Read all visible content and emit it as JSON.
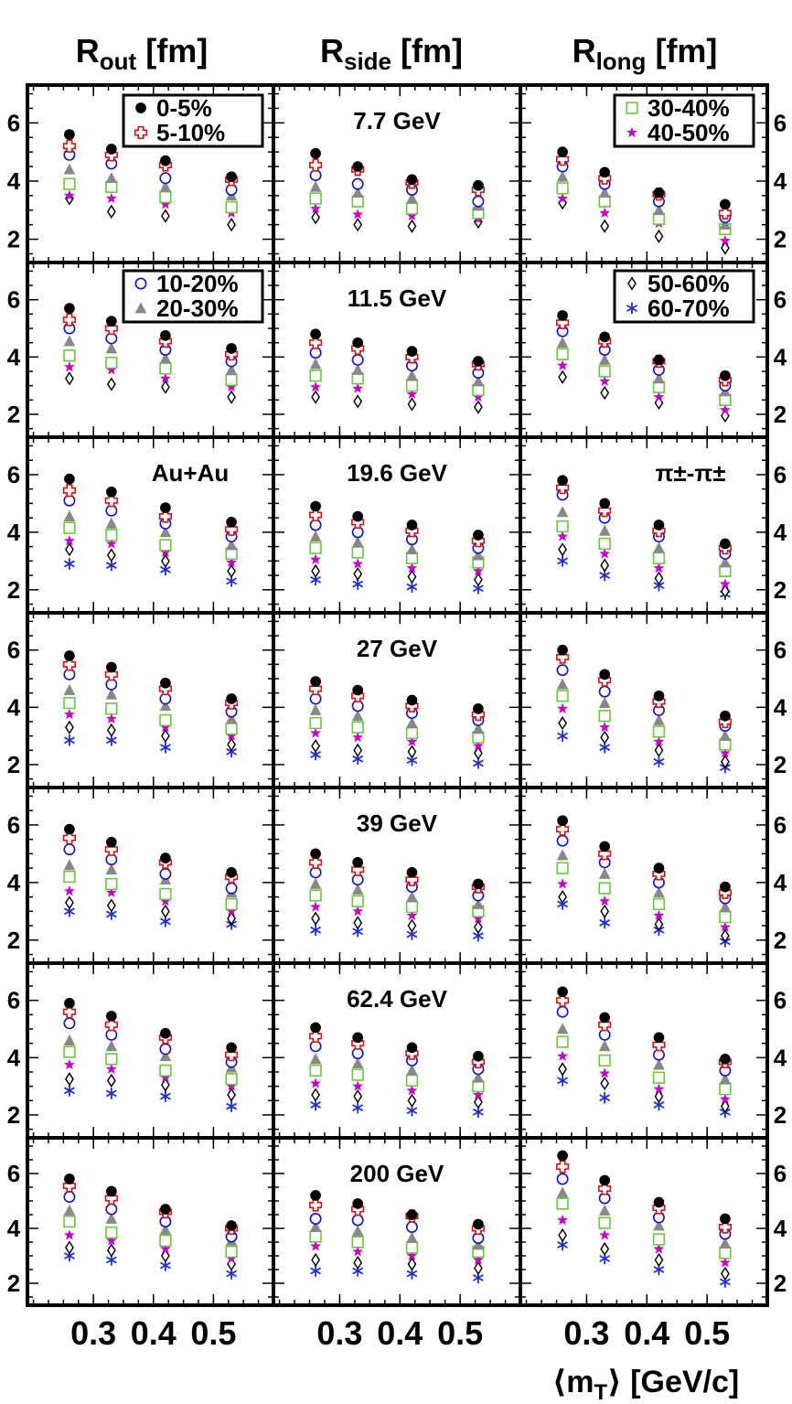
{
  "chart_data": {
    "type": "scatter",
    "column_titles": [
      {
        "main": "R",
        "sub": "out",
        "unit": " [fm]"
      },
      {
        "main": "R",
        "sub": "side",
        "unit": " [fm]"
      },
      {
        "main": "R",
        "sub": "long",
        "unit": " [fm]"
      }
    ],
    "xlabel_pre": "⟨m",
    "xlabel_sub": "T",
    "xlabel_post": "⟩ [GeV/c]",
    "x_ticks": [
      "0.3",
      "0.4",
      "0.5"
    ],
    "x_tick_values": [
      0.3,
      0.4,
      0.5
    ],
    "y_ticks": [
      "2",
      "4",
      "6"
    ],
    "y_tick_values": [
      2,
      4,
      6
    ],
    "xlim": [
      0.19,
      0.6
    ],
    "ylim": [
      1.2,
      7.3
    ],
    "x": [
      0.26,
      0.33,
      0.42,
      0.53
    ],
    "energies": [
      "7.7 GeV",
      "11.5 GeV",
      "19.6 GeV",
      "27 GeV",
      "39 GeV",
      "62.4 GeV",
      "200 GeV"
    ],
    "system_label": "Au+Au",
    "pair_label": "π±-π±",
    "series": [
      {
        "name": "0-5%",
        "marker": "filled-circle",
        "color": "#000000"
      },
      {
        "name": "5-10%",
        "marker": "open-cross",
        "color": "#e01010"
      },
      {
        "name": "10-20%",
        "marker": "open-circle",
        "color": "#1010e0"
      },
      {
        "name": "20-30%",
        "marker": "filled-triangle",
        "color": "#888888"
      },
      {
        "name": "30-40%",
        "marker": "open-square",
        "color": "#66cc33"
      },
      {
        "name": "40-50%",
        "marker": "star",
        "color": "#cc00cc"
      },
      {
        "name": "50-60%",
        "marker": "open-diamond",
        "color": "#000000"
      },
      {
        "name": "60-70%",
        "marker": "asterisk",
        "color": "#1a2ee0"
      }
    ],
    "legends": [
      {
        "row": 0,
        "col": 0,
        "items": [
          0,
          1
        ]
      },
      {
        "row": 0,
        "col": 2,
        "items": [
          4,
          5
        ]
      },
      {
        "row": 1,
        "col": 0,
        "items": [
          2,
          3
        ]
      },
      {
        "row": 1,
        "col": 2,
        "items": [
          6,
          7
        ]
      }
    ],
    "values": {
      "Rout": [
        [
          [
            5.6,
            5.1,
            4.7,
            4.15
          ],
          [
            5.2,
            4.9,
            4.55,
            4.05
          ],
          [
            4.9,
            4.6,
            4.1,
            3.7
          ],
          [
            4.4,
            4.1,
            3.8,
            3.5
          ],
          [
            3.9,
            3.8,
            3.45,
            3.1
          ],
          [
            3.5,
            3.4,
            3.2,
            2.9
          ],
          [
            3.4,
            2.95,
            2.8,
            2.5
          ],
          null
        ],
        [
          [
            5.7,
            5.25,
            4.75,
            4.3
          ],
          [
            5.3,
            5.0,
            4.55,
            4.1
          ],
          [
            5.0,
            4.65,
            4.25,
            3.85
          ],
          [
            4.55,
            4.3,
            3.95,
            3.55
          ],
          [
            4.05,
            3.8,
            3.6,
            3.2
          ],
          [
            3.65,
            3.55,
            3.25,
            2.95
          ],
          [
            3.25,
            3.05,
            2.95,
            2.6
          ],
          null
        ],
        [
          [
            5.85,
            5.4,
            4.85,
            4.35
          ],
          [
            5.45,
            5.1,
            4.55,
            4.1
          ],
          [
            5.1,
            4.75,
            4.3,
            3.85
          ],
          [
            4.55,
            4.3,
            4.0,
            3.55
          ],
          [
            4.15,
            3.9,
            3.55,
            3.25
          ],
          [
            3.7,
            3.6,
            3.3,
            2.95
          ],
          [
            3.4,
            3.2,
            3.0,
            2.65
          ],
          [
            2.9,
            2.85,
            2.7,
            2.3
          ]
        ],
        [
          [
            5.8,
            5.4,
            4.85,
            4.3
          ],
          [
            5.5,
            5.15,
            4.65,
            4.15
          ],
          [
            5.15,
            4.8,
            4.3,
            3.85
          ],
          [
            4.6,
            4.45,
            4.05,
            3.6
          ],
          [
            4.15,
            3.95,
            3.55,
            3.25
          ],
          [
            3.75,
            3.6,
            3.3,
            3.0
          ],
          [
            3.3,
            3.2,
            3.0,
            2.7
          ],
          [
            2.85,
            2.85,
            2.6,
            2.45
          ]
        ],
        [
          [
            5.85,
            5.4,
            4.85,
            4.35
          ],
          [
            5.55,
            5.15,
            4.7,
            4.2
          ],
          [
            5.15,
            4.8,
            4.3,
            3.8
          ],
          [
            4.6,
            4.45,
            4.1,
            3.65
          ],
          [
            4.2,
            3.95,
            3.6,
            3.25
          ],
          [
            3.7,
            3.65,
            3.35,
            3.0
          ],
          [
            3.3,
            3.2,
            3.0,
            2.75
          ],
          [
            3.0,
            2.9,
            2.65,
            2.55
          ]
        ],
        [
          [
            5.9,
            5.45,
            4.85,
            4.35
          ],
          [
            5.6,
            5.15,
            4.7,
            4.1
          ],
          [
            5.2,
            4.8,
            4.3,
            3.85
          ],
          [
            4.6,
            4.4,
            4.05,
            3.65
          ],
          [
            4.2,
            3.95,
            3.55,
            3.25
          ],
          [
            3.75,
            3.6,
            3.3,
            3.0
          ],
          [
            3.25,
            3.2,
            3.05,
            2.7
          ],
          [
            2.85,
            2.75,
            2.65,
            2.3
          ]
        ],
        [
          [
            5.8,
            5.35,
            4.7,
            4.1
          ],
          [
            5.55,
            5.1,
            4.6,
            4.0
          ],
          [
            5.15,
            4.7,
            4.25,
            3.7
          ],
          [
            4.65,
            4.35,
            3.95,
            3.55
          ],
          [
            4.25,
            3.85,
            3.55,
            3.15
          ],
          [
            3.75,
            3.55,
            3.25,
            2.9
          ],
          [
            3.3,
            3.2,
            3.0,
            2.7
          ],
          [
            3.0,
            2.85,
            2.65,
            2.35
          ]
        ]
      ],
      "Rside": [
        [
          [
            4.95,
            4.5,
            4.05,
            3.85
          ],
          [
            4.55,
            4.4,
            3.95,
            3.7
          ],
          [
            4.2,
            3.9,
            3.7,
            3.3
          ],
          [
            3.8,
            3.6,
            3.4,
            3.15
          ],
          [
            3.4,
            3.3,
            3.05,
            2.9
          ],
          [
            3.05,
            2.85,
            2.8,
            2.7
          ],
          [
            2.75,
            2.5,
            2.45,
            2.6
          ],
          null
        ],
        [
          [
            4.8,
            4.5,
            4.2,
            3.85
          ],
          [
            4.5,
            4.3,
            4.0,
            3.75
          ],
          [
            4.15,
            3.9,
            3.7,
            3.45
          ],
          [
            3.75,
            3.55,
            3.35,
            3.15
          ],
          [
            3.35,
            3.25,
            3.0,
            2.85
          ],
          [
            2.95,
            2.9,
            2.7,
            2.6
          ],
          [
            2.6,
            2.45,
            2.35,
            2.25
          ],
          null
        ],
        [
          [
            4.9,
            4.55,
            4.25,
            3.9
          ],
          [
            4.6,
            4.35,
            4.05,
            3.7
          ],
          [
            4.25,
            4.0,
            3.75,
            3.45
          ],
          [
            3.85,
            3.65,
            3.4,
            3.2
          ],
          [
            3.45,
            3.3,
            3.1,
            2.95
          ],
          [
            3.05,
            2.9,
            2.75,
            2.65
          ],
          [
            2.65,
            2.55,
            2.45,
            2.35
          ],
          [
            2.35,
            2.2,
            2.1,
            2.05
          ]
        ],
        [
          [
            4.9,
            4.6,
            4.25,
            3.95
          ],
          [
            4.65,
            4.4,
            4.05,
            3.75
          ],
          [
            4.3,
            4.05,
            3.8,
            3.55
          ],
          [
            3.9,
            3.7,
            3.45,
            3.25
          ],
          [
            3.45,
            3.3,
            3.1,
            2.95
          ],
          [
            3.1,
            2.95,
            2.8,
            2.65
          ],
          [
            2.65,
            2.5,
            2.45,
            2.4
          ],
          [
            2.35,
            2.2,
            2.15,
            2.05
          ]
        ],
        [
          [
            5.0,
            4.7,
            4.35,
            3.95
          ],
          [
            4.7,
            4.45,
            4.1,
            3.85
          ],
          [
            4.35,
            4.1,
            3.85,
            3.55
          ],
          [
            3.95,
            3.75,
            3.5,
            3.25
          ],
          [
            3.55,
            3.35,
            3.15,
            3.0
          ],
          [
            3.15,
            3.0,
            2.85,
            2.75
          ],
          [
            2.75,
            2.6,
            2.5,
            2.45
          ],
          [
            2.35,
            2.3,
            2.2,
            2.15
          ]
        ],
        [
          [
            5.05,
            4.7,
            4.35,
            4.05
          ],
          [
            4.75,
            4.5,
            4.15,
            3.85
          ],
          [
            4.4,
            4.15,
            3.9,
            3.6
          ],
          [
            3.95,
            3.8,
            3.55,
            3.3
          ],
          [
            3.55,
            3.4,
            3.2,
            3.0
          ],
          [
            3.1,
            3.0,
            2.85,
            2.7
          ],
          [
            2.7,
            2.65,
            2.5,
            2.45
          ],
          [
            2.35,
            2.25,
            2.15,
            2.1
          ]
        ],
        [
          [
            5.2,
            4.9,
            4.5,
            4.15
          ],
          [
            4.85,
            4.7,
            4.45,
            4.0
          ],
          [
            4.35,
            4.3,
            4.05,
            3.65
          ],
          [
            4.05,
            3.9,
            3.65,
            3.4
          ],
          [
            3.7,
            3.5,
            3.3,
            3.15
          ],
          [
            3.35,
            3.15,
            3.0,
            2.85
          ],
          [
            2.85,
            2.75,
            2.7,
            2.55
          ],
          [
            2.45,
            2.45,
            2.35,
            2.2
          ]
        ]
      ],
      "Rlong": [
        [
          [
            5.0,
            4.3,
            3.6,
            3.2
          ],
          [
            4.75,
            4.1,
            3.55,
            2.9
          ],
          [
            4.5,
            3.9,
            3.3,
            2.75
          ],
          [
            4.15,
            3.6,
            3.0,
            2.5
          ],
          [
            3.75,
            3.3,
            2.7,
            2.35
          ],
          [
            3.4,
            2.9,
            2.55,
            1.95
          ],
          [
            3.25,
            2.45,
            2.1,
            1.7
          ],
          null
        ],
        [
          [
            5.45,
            4.7,
            3.9,
            3.35
          ],
          [
            5.2,
            4.55,
            3.85,
            3.2
          ],
          [
            4.9,
            4.25,
            3.55,
            3.0
          ],
          [
            4.5,
            3.9,
            3.25,
            2.8
          ],
          [
            4.1,
            3.5,
            2.95,
            2.5
          ],
          [
            3.7,
            3.15,
            2.6,
            2.15
          ],
          [
            3.3,
            2.75,
            2.4,
            1.95
          ],
          null
        ],
        [
          [
            5.8,
            5.0,
            4.25,
            3.6
          ],
          [
            5.55,
            4.75,
            4.05,
            3.45
          ],
          [
            5.3,
            4.5,
            3.85,
            3.25
          ],
          [
            4.7,
            4.05,
            3.45,
            2.95
          ],
          [
            4.2,
            3.6,
            3.1,
            2.65
          ],
          [
            3.85,
            3.25,
            2.75,
            2.2
          ],
          [
            3.4,
            2.85,
            2.4,
            1.95
          ],
          [
            3.0,
            2.5,
            2.15,
            1.85
          ]
        ],
        [
          [
            6.0,
            5.15,
            4.4,
            3.7
          ],
          [
            5.75,
            4.95,
            4.2,
            3.5
          ],
          [
            5.3,
            4.55,
            3.9,
            3.35
          ],
          [
            4.8,
            4.15,
            3.55,
            3.0
          ],
          [
            4.4,
            3.7,
            3.15,
            2.7
          ],
          [
            3.95,
            3.3,
            2.8,
            2.4
          ],
          [
            3.45,
            2.95,
            2.5,
            2.1
          ],
          [
            3.0,
            2.6,
            2.1,
            1.9
          ]
        ],
        [
          [
            6.15,
            5.25,
            4.5,
            3.85
          ],
          [
            5.85,
            5.0,
            4.3,
            3.65
          ],
          [
            5.45,
            4.7,
            4.0,
            3.45
          ],
          [
            4.95,
            4.3,
            3.65,
            3.15
          ],
          [
            4.5,
            3.8,
            3.25,
            2.8
          ],
          [
            3.95,
            3.35,
            2.85,
            2.45
          ],
          [
            3.5,
            3.0,
            2.55,
            2.15
          ],
          [
            3.25,
            2.6,
            2.35,
            1.95
          ]
        ],
        [
          [
            6.3,
            5.4,
            4.7,
            3.95
          ],
          [
            6.0,
            5.15,
            4.45,
            3.85
          ],
          [
            5.6,
            4.8,
            4.1,
            3.55
          ],
          [
            5.0,
            4.4,
            3.75,
            3.25
          ],
          [
            4.55,
            3.9,
            3.3,
            2.9
          ],
          [
            4.05,
            3.45,
            2.9,
            2.55
          ],
          [
            3.6,
            3.1,
            2.65,
            2.3
          ],
          [
            3.2,
            2.6,
            2.35,
            2.1
          ]
        ],
        [
          [
            6.65,
            5.75,
            4.95,
            4.35
          ],
          [
            6.25,
            5.45,
            4.75,
            4.05
          ],
          [
            5.8,
            5.1,
            4.4,
            3.8
          ],
          [
            5.3,
            4.65,
            4.1,
            3.45
          ],
          [
            4.9,
            4.2,
            3.6,
            3.1
          ],
          [
            4.3,
            3.75,
            3.25,
            2.75
          ],
          [
            3.75,
            3.25,
            2.85,
            2.35
          ],
          [
            3.4,
            2.9,
            2.5,
            2.05
          ]
        ]
      ]
    }
  }
}
